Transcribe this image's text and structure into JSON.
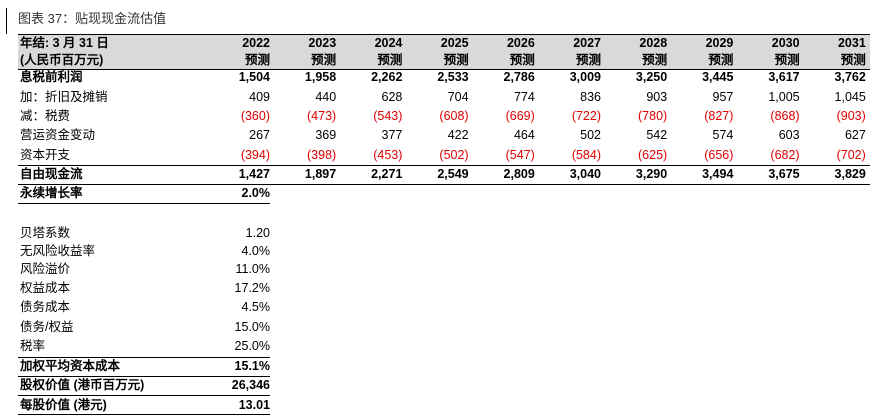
{
  "title": "图表 37：贴现现金流估值",
  "table": {
    "header": {
      "label": [
        "年结: 3 月 31 日",
        "(人民币百万元)"
      ],
      "years": [
        "2022",
        "2023",
        "2024",
        "2025",
        "2026",
        "2027",
        "2028",
        "2029",
        "2030",
        "2031"
      ],
      "subtitle": "预测"
    },
    "rows": [
      {
        "label": "息税前利润",
        "bold": true,
        "values": [
          "1,504",
          "1,958",
          "2,262",
          "2,533",
          "2,786",
          "3,009",
          "3,250",
          "3,445",
          "3,617",
          "3,762"
        ]
      },
      {
        "label": "加：折旧及摊销",
        "bold": false,
        "values": [
          "409",
          "440",
          "628",
          "704",
          "774",
          "836",
          "903",
          "957",
          "1,005",
          "1,045"
        ]
      },
      {
        "label": "减：税费",
        "bold": false,
        "values": [
          "(360)",
          "(473)",
          "(543)",
          "(608)",
          "(669)",
          "(722)",
          "(780)",
          "(827)",
          "(868)",
          "(903)"
        ]
      },
      {
        "label": "营运资金变动",
        "bold": false,
        "values": [
          "267",
          "369",
          "377",
          "422",
          "464",
          "502",
          "542",
          "574",
          "603",
          "627"
        ]
      },
      {
        "label": "资本开支",
        "bold": false,
        "values": [
          "(394)",
          "(398)",
          "(453)",
          "(502)",
          "(547)",
          "(584)",
          "(625)",
          "(656)",
          "(682)",
          "(702)"
        ]
      },
      {
        "label": "自由现金流",
        "bold": true,
        "values": [
          "1,427",
          "1,897",
          "2,271",
          "2,549",
          "2,809",
          "3,040",
          "3,290",
          "3,494",
          "3,675",
          "3,829"
        ]
      },
      {
        "label": "永续增长率",
        "bold": true,
        "values": [
          "2.0%"
        ]
      }
    ],
    "assumptions": [
      {
        "label": "贝塔系数",
        "bold": false,
        "value": "1.20"
      },
      {
        "label": "无风险收益率",
        "bold": false,
        "value": "4.0%"
      },
      {
        "label": "风险溢价",
        "bold": false,
        "value": "11.0%"
      },
      {
        "label": "权益成本",
        "bold": false,
        "value": "17.2%"
      },
      {
        "label": "债务成本",
        "bold": false,
        "value": "4.5%"
      },
      {
        "label": "债务/权益",
        "bold": false,
        "value": "15.0%"
      },
      {
        "label": "税率",
        "bold": false,
        "value": "25.0%"
      },
      {
        "label": "加权平均资本成本",
        "bold": true,
        "value": "15.1%"
      },
      {
        "label": "股权价值 (港币百万元)",
        "bold": true,
        "value": "26,346"
      },
      {
        "label": "每股价值 (港元)",
        "bold": true,
        "value": "13.01"
      }
    ]
  }
}
